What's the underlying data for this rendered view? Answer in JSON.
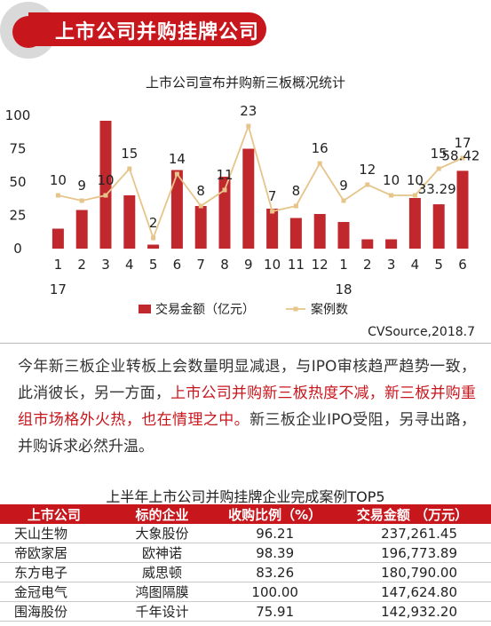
{
  "header": {
    "title": "上市公司并购挂牌公司"
  },
  "chart_data": {
    "type": "bar+line",
    "title": "上市公司宣布并购新三板概况统计",
    "categories": [
      "1",
      "2",
      "3",
      "4",
      "5",
      "6",
      "7",
      "8",
      "9",
      "10",
      "11",
      "12",
      "1",
      "2",
      "3",
      "4",
      "5",
      "6"
    ],
    "year_labels": [
      {
        "label": "17",
        "index": 0
      },
      {
        "label": "18",
        "index": 12
      }
    ],
    "y_ticks": [
      0,
      25,
      50,
      75,
      100
    ],
    "ylim": [
      0,
      100
    ],
    "series": [
      {
        "name": "交易金额（亿元）",
        "type": "bar",
        "color": "#c0282d",
        "values": [
          15,
          29,
          96,
          40,
          3,
          59,
          32,
          54,
          75,
          30,
          23,
          26,
          20,
          7,
          7,
          38,
          33.29,
          58.42
        ],
        "data_labels": {
          "16": "33.29",
          "17": "58.42"
        }
      },
      {
        "name": "案例数",
        "type": "line",
        "color": "#e6c48a",
        "values": [
          10,
          9,
          10,
          15,
          2,
          14,
          8,
          11,
          23,
          7,
          8,
          16,
          9,
          12,
          10,
          10,
          15,
          17
        ]
      }
    ],
    "source": "CVSource,2018.7"
  },
  "paragraph": {
    "part1": "今年新三板企业转板上会数量明显减退，与IPO审核趋严趋势一致，此消彼长，另一方面，",
    "highlight": "上市公司并购新三板热度不减，新三板并购重组市场格外火热，也在情理之中。",
    "part2": "新三板企业IPO受阻，另寻出路，并购诉求必然升温。"
  },
  "table": {
    "title": "上半年上市公司并购挂牌企业完成案例TOP5",
    "headers": [
      "上市公司",
      "标的企业",
      "收购比例（%）",
      "交易金额 （万元）"
    ],
    "rows": [
      [
        "天山生物",
        "大象股份",
        "96.21",
        "237,261.45"
      ],
      [
        "帝欧家居",
        "欧神诺",
        "98.39",
        "196,773.89"
      ],
      [
        "东方电子",
        "威思顿",
        "83.26",
        "180,790.00"
      ],
      [
        "金冠电气",
        "鸿图隔膜",
        "100.00",
        "147,624.80"
      ],
      [
        "围海股份",
        "千年设计",
        "75.91",
        "142,932.20"
      ]
    ]
  }
}
